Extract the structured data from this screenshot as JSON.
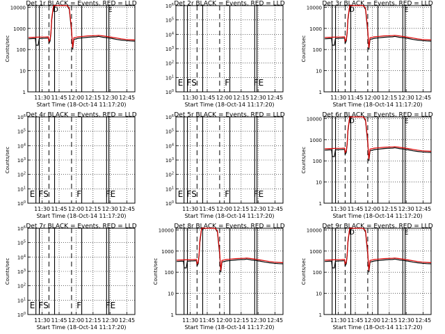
{
  "panels": [
    {
      "title": "Det 1r BLACK = Events, RED = LLD",
      "ylabel": "Counts/sec",
      "xlabel": "Start Time (18-Oct-14 11:17:20)",
      "type": "data",
      "yticks": [
        "1",
        "10",
        "100",
        "1000",
        "10000"
      ],
      "annotations": [
        "D",
        "E"
      ]
    },
    {
      "title": "Det 2r BLACK = Events, RED = LLD",
      "ylabel": "",
      "xlabel": "Start Time (18-Oct-14 11:17:20)",
      "type": "empty",
      "yticks": [
        "10^0",
        "10^1",
        "10^2",
        "10^3",
        "10^4",
        "10^5",
        "10^6"
      ],
      "annotations": [
        "E",
        "F",
        "S",
        "F",
        "FE"
      ]
    },
    {
      "title": "Det 3r BLACK = Events, RED = LLD",
      "ylabel": "Counts/sec",
      "xlabel": "Start Time (18-Oct-14 11:17:20)",
      "type": "data",
      "yticks": [
        "1",
        "10",
        "100",
        "1000",
        "10000"
      ],
      "annotations": [
        "D",
        "E"
      ]
    },
    {
      "title": "Det 4r BLACK = Events, RED = LLD",
      "ylabel": "Counts/sec",
      "xlabel": "Start Time (18-Oct-14 11:17:20)",
      "type": "empty",
      "yticks": [
        "10^0",
        "10^1",
        "10^2",
        "10^3",
        "10^4",
        "10^5",
        "10^6"
      ],
      "annotations": [
        "E",
        "F",
        "S",
        "F",
        "FE"
      ]
    },
    {
      "title": "Det 5r BLACK = Events, RED = LLD",
      "ylabel": "",
      "xlabel": "Start Time (18-Oct-14 11:17:20)",
      "type": "empty",
      "yticks": [
        "10^0",
        "10^1",
        "10^2",
        "10^3",
        "10^4",
        "10^5",
        "10^6"
      ],
      "annotations": [
        "E",
        "F",
        "S",
        "F",
        "FE"
      ]
    },
    {
      "title": "Det 6r BLACK = Events, RED = LLD",
      "ylabel": "Counts/sec",
      "xlabel": "Start Time (18-Oct-14 11:17:20)",
      "type": "data",
      "yticks": [
        "1",
        "10",
        "100",
        "1000",
        "10000"
      ],
      "annotations": [
        "D",
        "E"
      ]
    },
    {
      "title": "Det 7r BLACK = Events, RED = LLD",
      "ylabel": "Counts/sec",
      "xlabel": "Start Time (18-Oct-14 11:17:20)",
      "type": "empty",
      "yticks": [
        "10^0",
        "10^1",
        "10^2",
        "10^3",
        "10^4",
        "10^5",
        "10^6"
      ],
      "annotations": [
        "E",
        "F",
        "S",
        "F",
        "FE"
      ]
    },
    {
      "title": "Det 8r BLACK = Events, RED = LLD",
      "ylabel": "Counts/sec",
      "xlabel": "Start Time (18-Oct-14 11:17:20)",
      "type": "data",
      "yticks": [
        "1",
        "10",
        "100",
        "1000",
        "10000"
      ],
      "annotations": []
    },
    {
      "title": "Det 9r BLACK = Events, RED = LLD",
      "ylabel": "Counts/sec",
      "xlabel": "Start Time (18-Oct-14 11:17:20)",
      "type": "data",
      "yticks": [
        "1",
        "10",
        "100",
        "1000",
        "10000"
      ],
      "annotations": [
        "D",
        "E"
      ]
    }
  ],
  "chart_data": {
    "type": "line",
    "x_ticks": [
      "11:30",
      "11:45",
      "12:00",
      "12:15",
      "12:30",
      "12:45"
    ],
    "x_range_minutes": [
      17.33,
      112
    ],
    "x_tick_minutes": [
      30,
      45,
      60,
      75,
      90,
      105
    ],
    "solid_markers_minutes": [
      24.5,
      27.5,
      41,
      65,
      87,
      89
    ],
    "dashed_markers_minutes": [
      36,
      56
    ],
    "yscale": "log",
    "ylim": [
      1,
      12000
    ],
    "series": [
      {
        "name": "Events",
        "color": "#000000",
        "x": [
          18,
          22,
          24,
          24.6,
          25.4,
          26.5,
          27.4,
          30,
          33,
          35.5,
          36,
          37,
          37.8,
          38.5,
          40,
          44,
          48,
          50,
          52,
          54,
          56,
          57,
          58,
          62,
          66,
          70,
          74,
          78,
          80,
          84,
          88,
          92,
          96,
          100,
          104,
          108,
          112
        ],
        "y": [
          320,
          330,
          330,
          160,
          160,
          160,
          330,
          340,
          345,
          350,
          200,
          250,
          600,
          2500,
          11000,
          12000,
          12000,
          12000,
          12000,
          8000,
          700,
          100,
          300,
          340,
          360,
          380,
          395,
          400,
          420,
          380,
          360,
          330,
          300,
          280,
          265,
          255,
          250
        ]
      },
      {
        "name": "LLD",
        "color": "#dd0000",
        "x": [
          18,
          22,
          26,
          30,
          33,
          35.5,
          36,
          37,
          37.8,
          38.5,
          40,
          44,
          48,
          50,
          52,
          54,
          56,
          57,
          58,
          62,
          66,
          70,
          74,
          78,
          80,
          84,
          88,
          92,
          96,
          100,
          104,
          108,
          112
        ],
        "y": [
          370,
          380,
          385,
          390,
          395,
          400,
          250,
          300,
          700,
          3000,
          12000,
          12000,
          12000,
          12000,
          12000,
          9000,
          900,
          120,
          360,
          400,
          420,
          440,
          450,
          460,
          470,
          440,
          410,
          380,
          350,
          320,
          300,
          290,
          285
        ]
      }
    ]
  }
}
